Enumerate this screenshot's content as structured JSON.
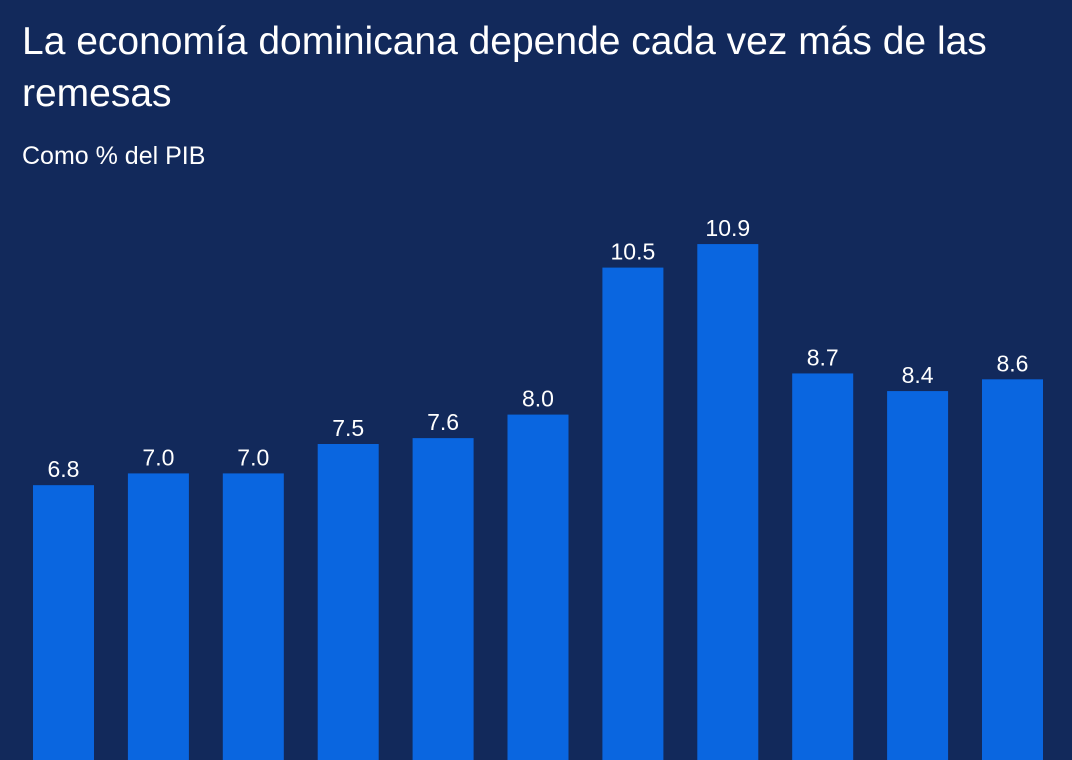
{
  "chart_data": {
    "type": "bar",
    "title": "La economía dominicana depende cada vez más de las remesas",
    "subtitle": "Como % del PIB",
    "values": [
      6.8,
      7.0,
      7.0,
      7.5,
      7.6,
      8.0,
      10.5,
      10.9,
      8.7,
      8.4,
      8.6
    ],
    "labels": [
      "6.8",
      "7.0",
      "7.0",
      "7.5",
      "7.6",
      "8.0",
      "10.5",
      "10.9",
      "8.7",
      "8.4",
      "8.6"
    ],
    "grid": false,
    "colors": {
      "background": "#12295b",
      "bar": "#0a66e0",
      "text": "#ffffff"
    }
  }
}
